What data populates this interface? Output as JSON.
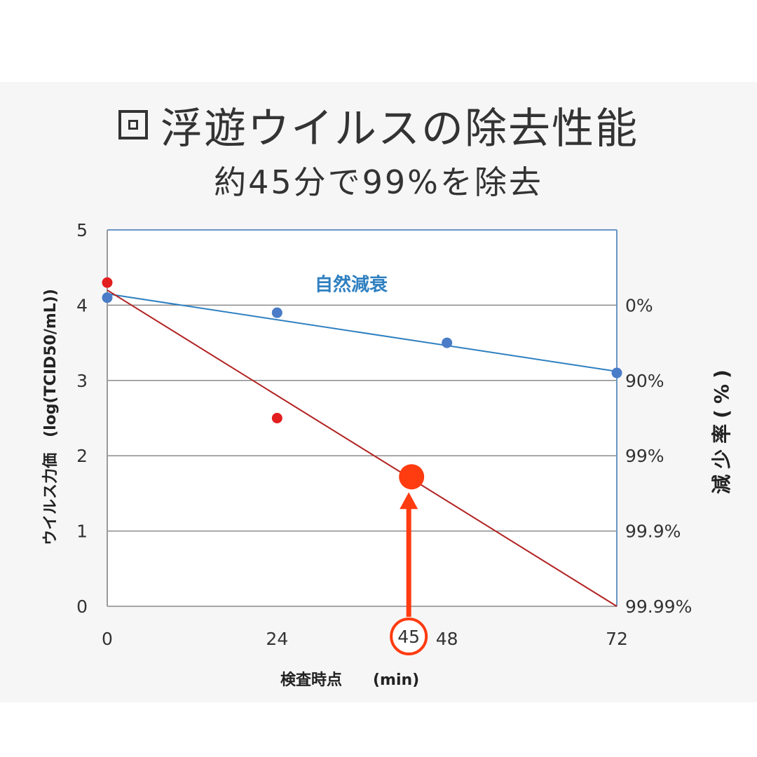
{
  "header": {
    "title": "浮遊ウイルスの除去性能",
    "icon": "square-box-icon",
    "subtitle": "約45分で99%を除去"
  },
  "chart_data": {
    "type": "scatter",
    "xlabel": "検査時点　　(min)",
    "ylabel": "ウイルス力価　(log(TCID50/mL))",
    "ylabel_right": "減少率(%)",
    "x_ticks": [
      "0",
      "24",
      "48",
      "72"
    ],
    "y_ticks": [
      "0",
      "1",
      "2",
      "3",
      "4",
      "5"
    ],
    "xlim": [
      0,
      72
    ],
    "ylim": [
      0,
      5
    ],
    "grid": true,
    "right_axis_ticks": [
      {
        "y": 4,
        "label": "0%"
      },
      {
        "y": 3,
        "label": "90%"
      },
      {
        "y": 2,
        "label": "99%"
      },
      {
        "y": 1,
        "label": "99.9%"
      },
      {
        "y": 0,
        "label": "99.99%"
      }
    ],
    "series": [
      {
        "name": "自然減衰",
        "color": "#4a7cc7",
        "line_color": "#2f80c0",
        "points": [
          {
            "x": 0,
            "y": 4.1
          },
          {
            "x": 24,
            "y": 3.9
          },
          {
            "x": 48,
            "y": 3.5
          },
          {
            "x": 72,
            "y": 3.1
          }
        ],
        "fit_line": [
          {
            "x": 0,
            "y": 4.15
          },
          {
            "x": 72,
            "y": 3.12
          }
        ]
      },
      {
        "name": "",
        "color": "#e31e1e",
        "line_color": "#b22222",
        "points": [
          {
            "x": 0,
            "y": 4.3
          },
          {
            "x": 24,
            "y": 2.5
          }
        ],
        "fit_line": [
          {
            "x": 0,
            "y": 4.2
          },
          {
            "x": 72,
            "y": 0
          }
        ]
      }
    ],
    "highlight": {
      "x": 43,
      "y": 1.72,
      "label": "45",
      "color": "#ff3b10"
    }
  }
}
